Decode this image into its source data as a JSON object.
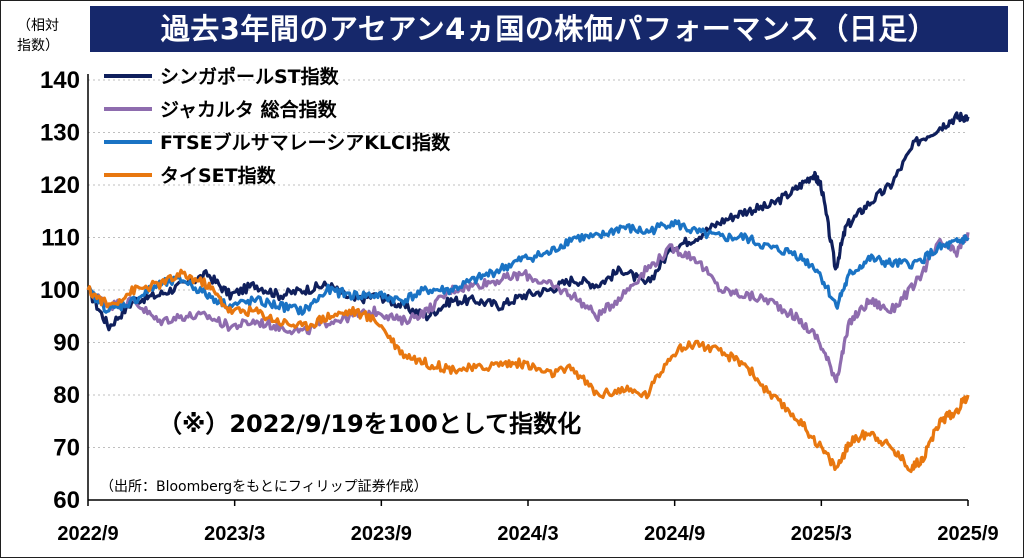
{
  "title": "過去3年間のアセアン4ヵ国の株価パフォーマンス（日足）",
  "unit_label_line1": "（相対",
  "unit_label_line2": "指数）",
  "note": "（※）2022/9/19を100として指数化",
  "source": "（出所：Bloombergをもとにフィリップ証券作成）",
  "chart_data": {
    "type": "line",
    "ylim": [
      60,
      140
    ],
    "yticks": [
      60,
      70,
      80,
      90,
      100,
      110,
      120,
      130,
      140
    ],
    "x_tick_labels": [
      "2022/9",
      "2023/3",
      "2023/9",
      "2024/3",
      "2024/9",
      "2025/3",
      "2025/9"
    ],
    "x_range": [
      "2022-09-19",
      "2025-09-19"
    ],
    "grid": "horizontal dotted",
    "legend_position": "top-left",
    "series": [
      {
        "name": "シンガポールST指数",
        "color": "#0f1f5c",
        "points": [
          [
            "2022-09-19",
            100
          ],
          [
            "2022-10-15",
            93
          ],
          [
            "2022-11-15",
            98
          ],
          [
            "2022-12-15",
            99
          ],
          [
            "2023-01-15",
            101
          ],
          [
            "2023-02-15",
            103
          ],
          [
            "2023-03-15",
            99
          ],
          [
            "2023-04-15",
            101
          ],
          [
            "2023-05-15",
            99
          ],
          [
            "2023-06-15",
            100
          ],
          [
            "2023-07-15",
            101
          ],
          [
            "2023-08-15",
            98
          ],
          [
            "2023-09-15",
            99
          ],
          [
            "2023-10-15",
            97
          ],
          [
            "2023-11-15",
            95
          ],
          [
            "2023-12-15",
            98
          ],
          [
            "2024-01-15",
            98
          ],
          [
            "2024-02-15",
            97
          ],
          [
            "2024-03-15",
            99
          ],
          [
            "2024-04-15",
            100
          ],
          [
            "2024-05-15",
            102
          ],
          [
            "2024-06-15",
            101
          ],
          [
            "2024-07-15",
            104
          ],
          [
            "2024-08-15",
            101
          ],
          [
            "2024-09-15",
            108
          ],
          [
            "2024-10-15",
            110
          ],
          [
            "2024-11-15",
            113
          ],
          [
            "2024-12-15",
            115
          ],
          [
            "2025-01-15",
            116
          ],
          [
            "2025-02-15",
            119
          ],
          [
            "2025-03-10",
            122
          ],
          [
            "2025-03-20",
            120
          ],
          [
            "2025-04-07",
            104
          ],
          [
            "2025-04-20",
            112
          ],
          [
            "2025-05-15",
            116
          ],
          [
            "2025-06-15",
            120
          ],
          [
            "2025-07-15",
            128
          ],
          [
            "2025-08-15",
            131
          ],
          [
            "2025-09-05",
            133
          ],
          [
            "2025-09-19",
            133
          ]
        ]
      },
      {
        "name": "ジャカルタ 総合指数",
        "color": "#8e6cae",
        "points": [
          [
            "2022-09-19",
            100
          ],
          [
            "2022-10-15",
            97
          ],
          [
            "2022-11-15",
            98
          ],
          [
            "2022-12-15",
            94
          ],
          [
            "2023-01-15",
            95
          ],
          [
            "2023-02-15",
            95
          ],
          [
            "2023-03-15",
            93
          ],
          [
            "2023-04-15",
            94
          ],
          [
            "2023-05-15",
            93
          ],
          [
            "2023-06-15",
            92
          ],
          [
            "2023-07-15",
            94
          ],
          [
            "2023-08-15",
            95
          ],
          [
            "2023-09-15",
            96
          ],
          [
            "2023-10-15",
            94
          ],
          [
            "2023-11-15",
            96
          ],
          [
            "2023-12-15",
            100
          ],
          [
            "2024-01-15",
            101
          ],
          [
            "2024-02-15",
            102
          ],
          [
            "2024-03-15",
            103
          ],
          [
            "2024-04-15",
            101
          ],
          [
            "2024-05-15",
            99
          ],
          [
            "2024-06-15",
            95
          ],
          [
            "2024-07-15",
            99
          ],
          [
            "2024-08-15",
            104
          ],
          [
            "2024-09-15",
            108
          ],
          [
            "2024-10-15",
            106
          ],
          [
            "2024-11-15",
            100
          ],
          [
            "2024-12-15",
            99
          ],
          [
            "2025-01-15",
            98
          ],
          [
            "2025-02-15",
            95
          ],
          [
            "2025-03-15",
            91
          ],
          [
            "2025-04-08",
            83
          ],
          [
            "2025-04-25",
            94
          ],
          [
            "2025-05-20",
            98
          ],
          [
            "2025-06-15",
            96
          ],
          [
            "2025-07-15",
            101
          ],
          [
            "2025-08-15",
            109
          ],
          [
            "2025-09-05",
            107
          ],
          [
            "2025-09-19",
            111
          ]
        ]
      },
      {
        "name": "FTSEブルサマレーシアKLCI指数",
        "color": "#1a73c4",
        "points": [
          [
            "2022-09-19",
            100
          ],
          [
            "2022-10-15",
            96
          ],
          [
            "2022-11-15",
            98
          ],
          [
            "2022-12-15",
            101
          ],
          [
            "2023-01-15",
            102
          ],
          [
            "2023-02-15",
            99
          ],
          [
            "2023-03-15",
            97
          ],
          [
            "2023-04-15",
            98
          ],
          [
            "2023-05-15",
            97
          ],
          [
            "2023-06-15",
            96
          ],
          [
            "2023-07-15",
            100
          ],
          [
            "2023-08-15",
            99
          ],
          [
            "2023-09-15",
            99
          ],
          [
            "2023-10-15",
            98
          ],
          [
            "2023-11-15",
            100
          ],
          [
            "2023-12-15",
            100
          ],
          [
            "2024-01-15",
            102
          ],
          [
            "2024-02-15",
            104
          ],
          [
            "2024-03-15",
            106
          ],
          [
            "2024-04-15",
            107
          ],
          [
            "2024-05-15",
            110
          ],
          [
            "2024-06-15",
            110
          ],
          [
            "2024-07-15",
            112
          ],
          [
            "2024-08-15",
            111
          ],
          [
            "2024-09-15",
            113
          ],
          [
            "2024-10-15",
            111
          ],
          [
            "2024-11-15",
            110
          ],
          [
            "2024-12-15",
            110
          ],
          [
            "2025-01-15",
            108
          ],
          [
            "2025-02-15",
            107
          ],
          [
            "2025-03-15",
            104
          ],
          [
            "2025-04-08",
            97
          ],
          [
            "2025-04-25",
            103
          ],
          [
            "2025-05-20",
            106
          ],
          [
            "2025-06-15",
            105
          ],
          [
            "2025-07-15",
            105
          ],
          [
            "2025-08-15",
            108
          ],
          [
            "2025-09-05",
            109
          ],
          [
            "2025-09-19",
            110
          ]
        ]
      },
      {
        "name": "タイSET指数",
        "color": "#e8770f",
        "points": [
          [
            "2022-09-19",
            100
          ],
          [
            "2022-10-15",
            97
          ],
          [
            "2022-11-15",
            100
          ],
          [
            "2022-12-15",
            101
          ],
          [
            "2023-01-15",
            103
          ],
          [
            "2023-02-15",
            101
          ],
          [
            "2023-03-15",
            96
          ],
          [
            "2023-04-15",
            96
          ],
          [
            "2023-05-15",
            94
          ],
          [
            "2023-06-15",
            93
          ],
          [
            "2023-07-15",
            95
          ],
          [
            "2023-08-15",
            96
          ],
          [
            "2023-09-15",
            94
          ],
          [
            "2023-10-15",
            88
          ],
          [
            "2023-11-15",
            86
          ],
          [
            "2023-12-15",
            85
          ],
          [
            "2024-01-15",
            85
          ],
          [
            "2024-02-15",
            86
          ],
          [
            "2024-03-15",
            86
          ],
          [
            "2024-04-15",
            84
          ],
          [
            "2024-05-15",
            85
          ],
          [
            "2024-06-15",
            80
          ],
          [
            "2024-07-15",
            81
          ],
          [
            "2024-08-15",
            80
          ],
          [
            "2024-09-15",
            88
          ],
          [
            "2024-10-15",
            90
          ],
          [
            "2024-11-15",
            88
          ],
          [
            "2024-12-15",
            86
          ],
          [
            "2025-01-15",
            80
          ],
          [
            "2025-02-15",
            76
          ],
          [
            "2025-03-15",
            71
          ],
          [
            "2025-04-08",
            66
          ],
          [
            "2025-04-25",
            71
          ],
          [
            "2025-05-20",
            73
          ],
          [
            "2025-06-15",
            70
          ],
          [
            "2025-07-10",
            66
          ],
          [
            "2025-07-25",
            68
          ],
          [
            "2025-08-15",
            75
          ],
          [
            "2025-09-05",
            77
          ],
          [
            "2025-09-19",
            80
          ]
        ]
      }
    ]
  }
}
